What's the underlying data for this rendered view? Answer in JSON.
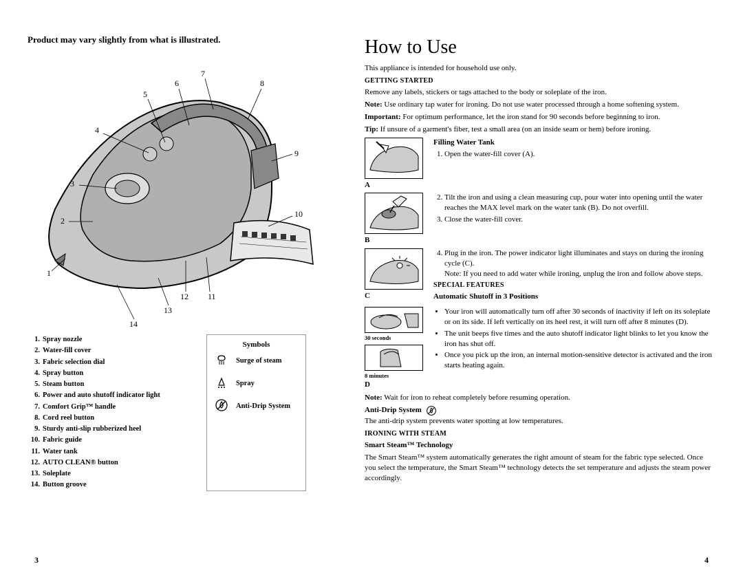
{
  "left": {
    "product_note": "Product may vary slightly from what is illustrated.",
    "callouts": [
      "1",
      "2",
      "3",
      "4",
      "5",
      "6",
      "7",
      "8",
      "9",
      "10",
      "11",
      "12",
      "13",
      "14"
    ],
    "parts": [
      "Spray nozzle",
      "Water-fill cover",
      "Fabric selection dial",
      "Spray button",
      "Steam button",
      "Power and auto shutoff indicator light",
      "Comfort Grip™ handle",
      "Cord reel button",
      "Sturdy anti-slip rubberized heel",
      "Fabric guide",
      "Water tank",
      "AUTO CLEAN® button",
      "Soleplate",
      "Button groove"
    ],
    "symbols": {
      "title": "Symbols",
      "rows": [
        {
          "icon": "steam",
          "label": "Surge of steam"
        },
        {
          "icon": "spray",
          "label": "Spray"
        },
        {
          "icon": "antidrip",
          "label": "Anti-Drip System"
        }
      ]
    },
    "page_num": "3"
  },
  "right": {
    "title": "How to Use",
    "intro": "This appliance is intended for household use only.",
    "getting_started": {
      "heading": "GETTING STARTED",
      "p1": "Remove any labels, stickers or tags attached to the body or soleplate of the iron.",
      "note_label": "Note:",
      "note": " Use ordinary tap water for ironing. Do not use water processed through a home softening system.",
      "important_label": "Important:",
      "important": " For optimum performance, let the iron stand for 90 seconds before beginning to iron.",
      "tip_label": "Tip:",
      "tip": " If unsure of a garment's fiber, test a small area (on an inside seam or hem) before ironing."
    },
    "fill": {
      "heading": "Filling Water Tank",
      "step1": "Open the water-fill cover (A).",
      "labelA": "A",
      "step2": "Tilt the iron and using a clean measuring cup, pour water into opening until the water reaches the MAX level mark on the water tank (B). Do not overfill.",
      "step3": "Close the water-fill cover.",
      "labelB": "B",
      "step4": "Plug in the iron. The power indicator light illuminates and stays on during the ironing cycle (C).",
      "step4_note": "Note: If you need to add water while ironing, unplug the iron and follow above steps.",
      "labelC": "C"
    },
    "special": {
      "heading": "SPECIAL FEATURES",
      "sub1": "Automatic Shutoff in 3 Positions",
      "b1": "Your iron will automatically turn off after 30 seconds of inactivity if left on its soleplate or on its side. If left vertically on its heel rest, it will turn off after 8 minutes (D).",
      "b2": "The unit beeps five times and the auto shutoff indicator light blinks to let you know the iron has shut off.",
      "b3": "Once you pick up the iron, an internal motion-sensitive detector is activated and the iron starts heating again.",
      "d_30": "30 seconds",
      "d_8": "8 minutes",
      "labelD": "D",
      "note_label": "Note:",
      "note": " Wait for iron to reheat completely before resuming operation."
    },
    "antidrip": {
      "heading": "Anti-Drip System",
      "text": "The anti-drip system prevents water spotting at low temperatures."
    },
    "steam": {
      "heading": "IRONING WITH STEAM",
      "sub": "Smart Steam™ Technology",
      "text": "The Smart Steam™ system automatically generates the right amount of steam for the fabric type selected. Once you select the temperature, the Smart Steam™ technology detects the set temperature and adjusts the steam power accordingly."
    },
    "page_num": "4"
  },
  "colors": {
    "text": "#000000",
    "iron_fill": "#b9b9b9",
    "iron_dark": "#7a7a7a",
    "line": "#000000",
    "box_border": "#999999",
    "bg": "#ffffff"
  }
}
